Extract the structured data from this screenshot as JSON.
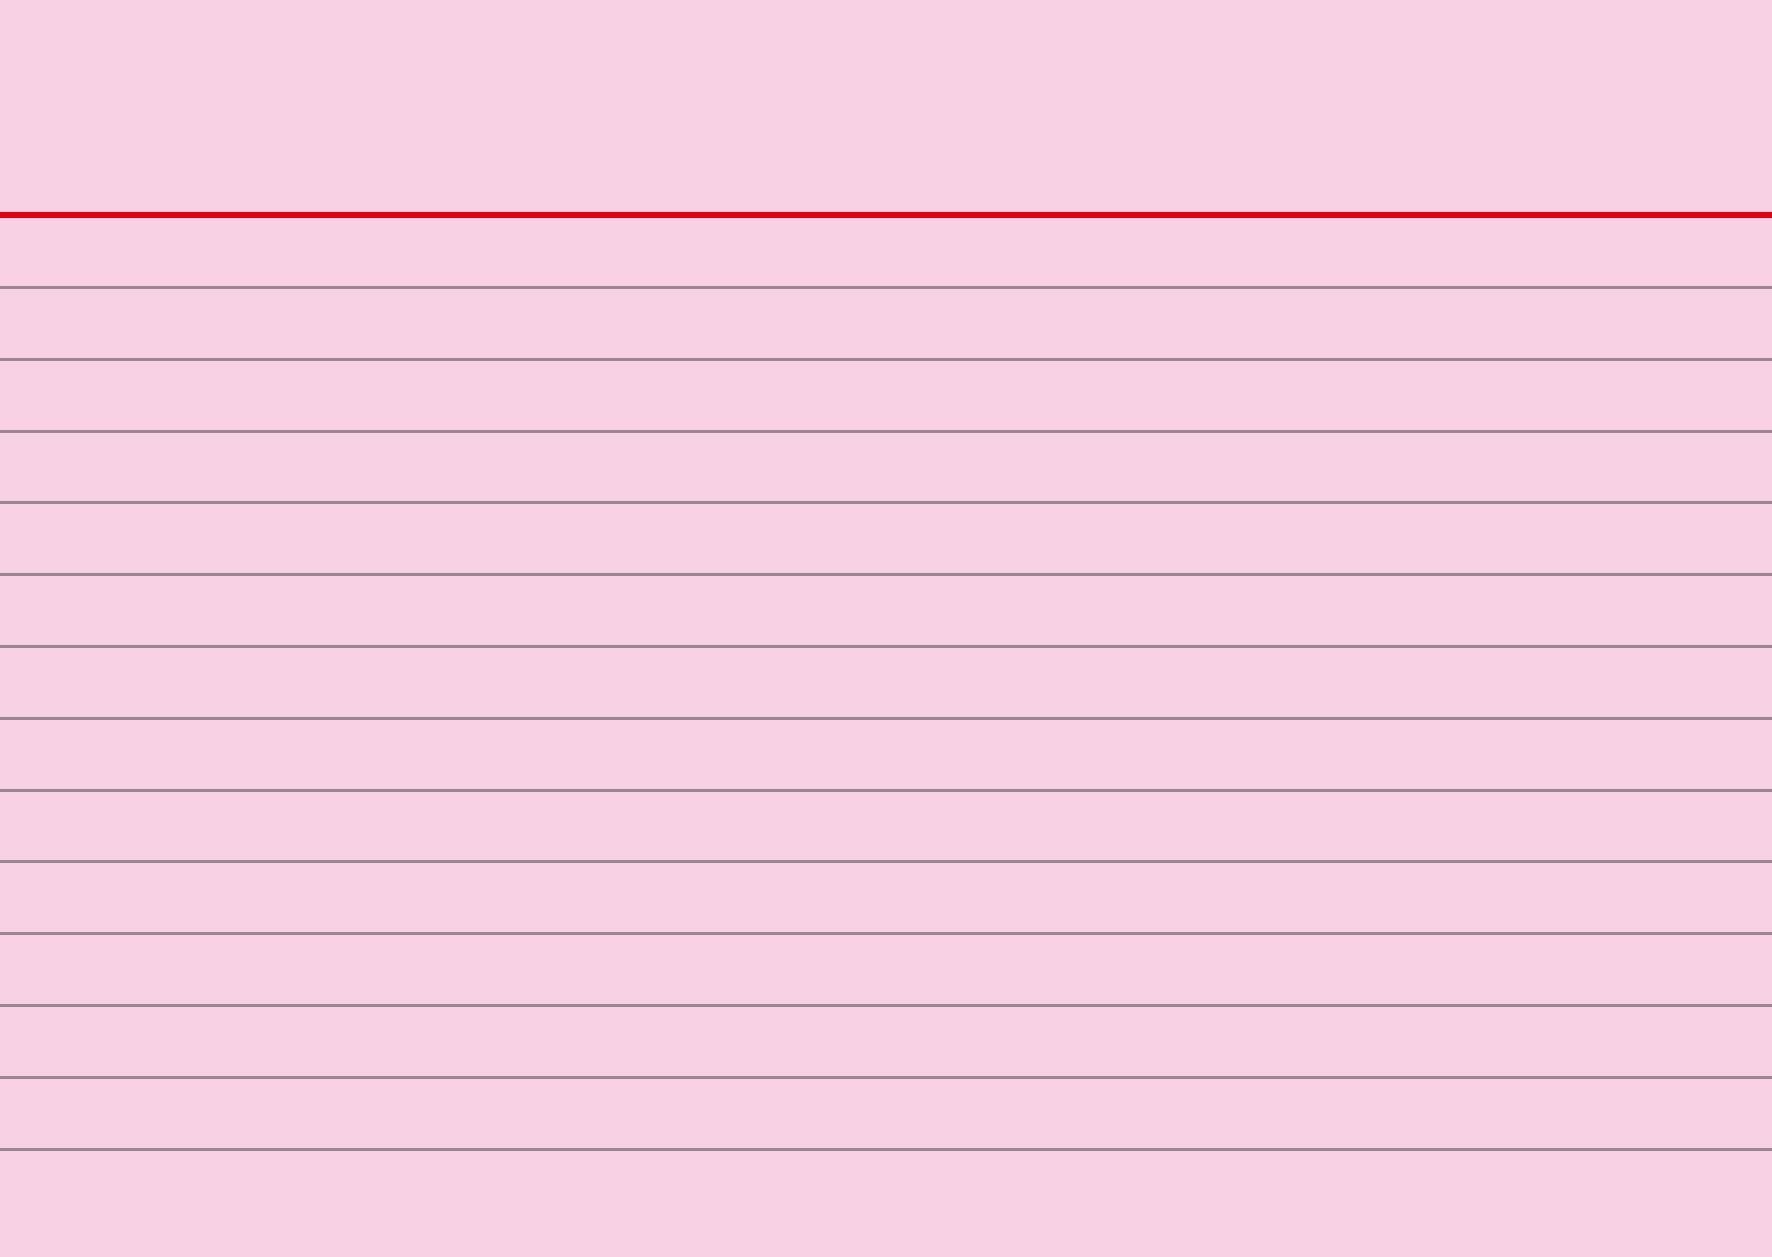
{
  "card": {
    "background_color": "#f7d1e2",
    "header_rule_color": "#e3000f",
    "line_color": "#9a8590",
    "ruled_line_count": 13
  }
}
